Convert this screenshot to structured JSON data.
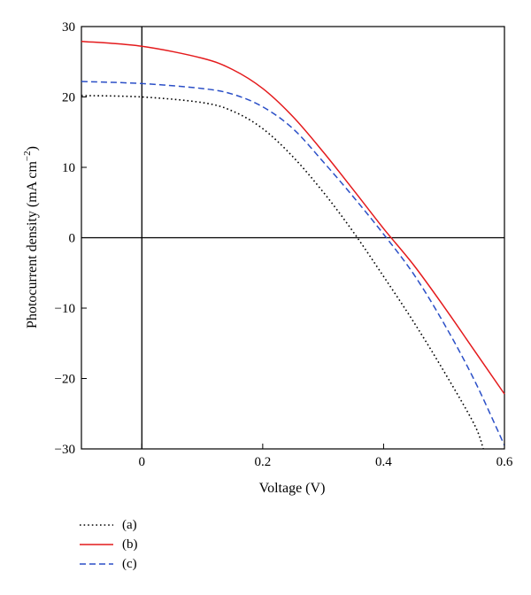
{
  "chart_data": {
    "type": "line",
    "xlabel": "Voltage (V)",
    "ylabel": "Photocurrent density (mA cm",
    "ylabel_superscript": "−2",
    "ylabel_close": ")",
    "xlim": [
      -0.1,
      0.6
    ],
    "ylim": [
      -30,
      30
    ],
    "xticks": [
      0,
      0.2,
      0.4,
      0.6
    ],
    "xtick_labels": [
      "0",
      "0.2",
      "0.4",
      "0.6"
    ],
    "yticks": [
      -30,
      -20,
      -10,
      0,
      10,
      20,
      30
    ],
    "ytick_labels": [
      "−30",
      "−20",
      "−10",
      "0",
      "10",
      "20",
      "30"
    ],
    "zero_lines": true,
    "grid": false,
    "legend_position": "bottom-left-outside",
    "series": [
      {
        "name": "(a)",
        "color": "#000000",
        "style": "dotted",
        "x": [
          -0.1,
          0,
          0.1,
          0.15,
          0.2,
          0.25,
          0.3,
          0.35,
          0.4,
          0.45,
          0.5,
          0.55,
          0.565
        ],
        "y": [
          20.2,
          20.0,
          19.2,
          18.0,
          15.5,
          11.5,
          6.5,
          0.8,
          -5.5,
          -12.0,
          -19.0,
          -26.5,
          -30
        ]
      },
      {
        "name": "(b)",
        "color": "#e41a1c",
        "style": "solid",
        "x": [
          -0.1,
          0,
          0.1,
          0.15,
          0.2,
          0.25,
          0.3,
          0.35,
          0.4,
          0.45,
          0.5,
          0.55,
          0.6
        ],
        "y": [
          27.9,
          27.2,
          25.5,
          23.9,
          21.2,
          17.2,
          12.2,
          6.8,
          1.3,
          -3.9,
          -9.8,
          -16.0,
          -22.2
        ]
      },
      {
        "name": "(c)",
        "color": "#2b4fc7",
        "style": "dashed",
        "x": [
          -0.1,
          0,
          0.1,
          0.15,
          0.2,
          0.25,
          0.3,
          0.35,
          0.4,
          0.45,
          0.5,
          0.55,
          0.6
        ],
        "y": [
          22.2,
          21.9,
          21.2,
          20.4,
          18.6,
          15.5,
          10.8,
          5.8,
          0.5,
          -5.2,
          -12.2,
          -20.2,
          -29.5
        ]
      }
    ]
  }
}
